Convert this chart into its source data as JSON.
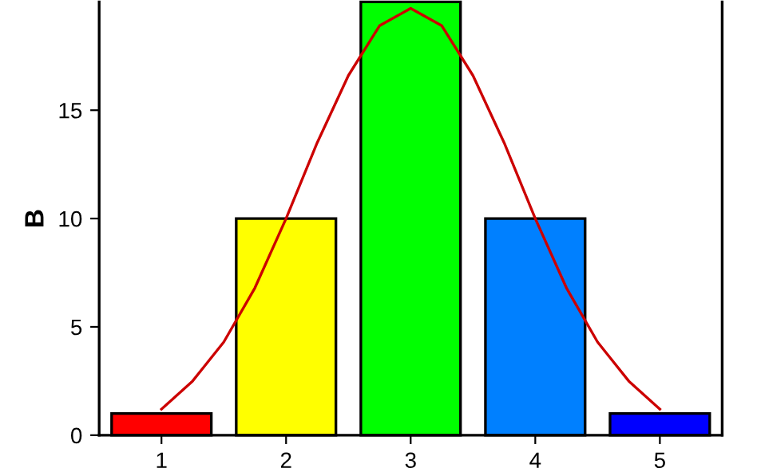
{
  "chart_data": {
    "type": "bar",
    "ylabel": "B",
    "xlim": [
      0.5,
      5.5
    ],
    "xticks": [
      1,
      2,
      3,
      4,
      5
    ],
    "ylim": [
      0,
      20
    ],
    "yticks": [
      0,
      5,
      10,
      15
    ],
    "grid": false,
    "legend": false,
    "series": [
      {
        "x": [
          1,
          2,
          3,
          4,
          5
        ],
        "values": [
          1,
          10,
          20,
          10,
          1
        ],
        "colors": [
          "#ff0000",
          "#ffff00",
          "#00ff00",
          "#0080ff",
          "#0000ff"
        ]
      },
      {
        "type": "line",
        "color": "#cc0000",
        "x": [
          1,
          1.25,
          1.5,
          1.75,
          2,
          2.25,
          2.5,
          2.75,
          3,
          3.25,
          3.5,
          3.75,
          4,
          4.25,
          4.5,
          4.75,
          5
        ],
        "values": [
          1.2,
          2.5,
          4.3,
          6.8,
          10,
          13.5,
          16.6,
          18.9,
          19.7,
          18.9,
          16.6,
          13.5,
          10,
          6.8,
          4.3,
          2.5,
          1.2
        ]
      }
    ]
  }
}
